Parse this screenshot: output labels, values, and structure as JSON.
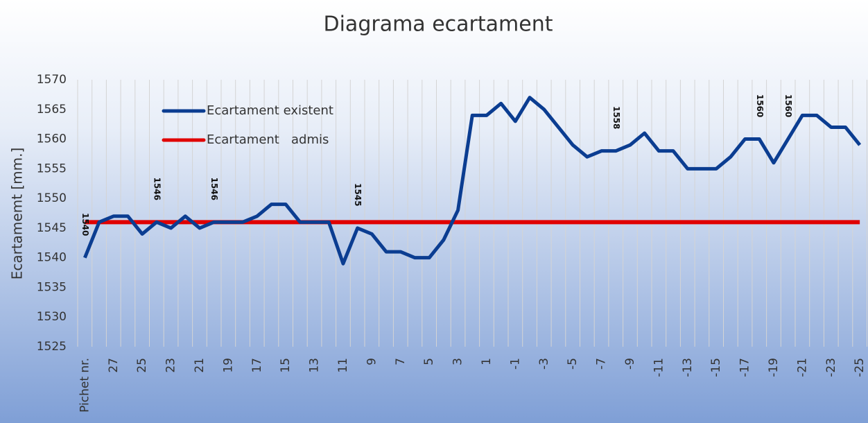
{
  "chart_data": {
    "type": "line",
    "title": "Diagrama ecartament",
    "y_label": "Ecartamemt [mm.]",
    "categories": [
      "Pichet nr.",
      null,
      "27",
      null,
      "25",
      null,
      "23",
      null,
      "21",
      null,
      "19",
      null,
      "17",
      null,
      "15",
      null,
      "13",
      null,
      "11",
      null,
      "9",
      null,
      "7",
      null,
      "5",
      null,
      "3",
      null,
      "1",
      null,
      "-1",
      null,
      "-3",
      null,
      "-5",
      null,
      "-7",
      null,
      "-9",
      null,
      "-11",
      null,
      "-13",
      null,
      "-15",
      null,
      "-17",
      null,
      "-19",
      null,
      "-21",
      null,
      "-23",
      null,
      "-25"
    ],
    "series": [
      {
        "name": "Ecartament existent",
        "color": "#0b3d91",
        "values": [
          1540,
          1546,
          1547,
          1547,
          1544,
          1546,
          1545,
          1547,
          1545,
          1546,
          1546,
          1546,
          1547,
          1549,
          1549,
          1546,
          1546,
          1546,
          1539,
          1545,
          1544,
          1541,
          1541,
          1540,
          1540,
          1543,
          1548,
          1564,
          1564,
          1566,
          1563,
          1567,
          1565,
          1562,
          1559,
          1557,
          1558,
          1558,
          1559,
          1561,
          1558,
          1558,
          1555,
          1555,
          1555,
          1557,
          1560,
          1560,
          1556,
          1560,
          1564,
          1564,
          1562,
          1562,
          1559
        ],
        "value_labels": [
          "1540",
          null,
          null,
          null,
          null,
          "1546",
          null,
          null,
          null,
          "1546",
          null,
          null,
          null,
          null,
          null,
          null,
          null,
          null,
          null,
          "1545",
          null,
          null,
          null,
          null,
          null,
          null,
          null,
          null,
          null,
          null,
          null,
          null,
          null,
          null,
          null,
          null,
          null,
          "1558",
          null,
          null,
          null,
          null,
          null,
          null,
          null,
          null,
          null,
          "1560",
          null,
          "1560",
          null,
          null,
          null,
          null,
          null
        ]
      },
      {
        "name": "Ecartament   admis",
        "color": "#e00000",
        "values": [
          1546,
          1546,
          1546,
          1546,
          1546,
          1546,
          1546,
          1546,
          1546,
          1546,
          1546,
          1546,
          1546,
          1546,
          1546,
          1546,
          1546,
          1546,
          1546,
          1546,
          1546,
          1546,
          1546,
          1546,
          1546,
          1546,
          1546,
          1546,
          1546,
          1546,
          1546,
          1546,
          1546,
          1546,
          1546,
          1546,
          1546,
          1546,
          1546,
          1546,
          1546,
          1546,
          1546,
          1546,
          1546,
          1546,
          1546,
          1546,
          1546,
          1546,
          1546,
          1546,
          1546,
          1546,
          1546
        ]
      }
    ],
    "ylim": [
      1525,
      1570
    ],
    "yticks": [
      1525,
      1530,
      1535,
      1540,
      1545,
      1550,
      1555,
      1560,
      1565,
      1570
    ],
    "grid": false
  }
}
